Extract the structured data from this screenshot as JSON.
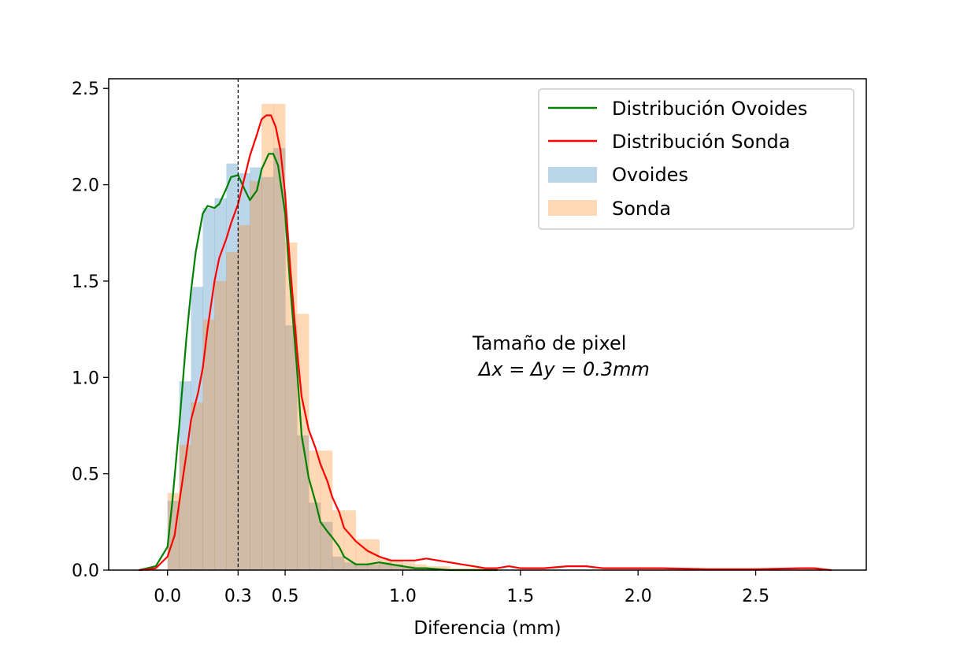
{
  "chart_data": {
    "type": "bar",
    "xlabel": "Diferencia (mm)",
    "ylabel": "",
    "xlim": [
      -0.25,
      2.97
    ],
    "ylim": [
      0,
      2.55
    ],
    "xticks": [
      0.0,
      0.3,
      0.5,
      1.0,
      1.5,
      2.0,
      2.5
    ],
    "xtick_labels": [
      "0.0",
      "0.3",
      "0.5",
      "1.0",
      "1.5",
      "2.0",
      "2.5"
    ],
    "yticks": [
      0.0,
      0.5,
      1.0,
      1.5,
      2.0,
      2.5
    ],
    "ytick_labels": [
      "0.0",
      "0.5",
      "1.0",
      "1.5",
      "2.0",
      "2.5"
    ],
    "grid": false,
    "legend_position": "top-right",
    "vline": {
      "x": 0.3,
      "style": "dashed",
      "color": "#000000"
    },
    "annotation": {
      "line1": "Tamaño de pixel",
      "line2": "Δx = Δy = 0.3mm"
    },
    "histograms": [
      {
        "name": "Ovoides",
        "color": "#1f77b4",
        "alpha": 0.3,
        "bin_width": 0.05,
        "bins": [
          [
            0.0,
            0.36
          ],
          [
            0.05,
            0.98
          ],
          [
            0.1,
            1.47
          ],
          [
            0.15,
            1.88
          ],
          [
            0.2,
            1.93
          ],
          [
            0.25,
            2.11
          ],
          [
            0.3,
            2.06
          ],
          [
            0.35,
            2.09
          ],
          [
            0.4,
            2.04
          ],
          [
            0.45,
            2.19
          ],
          [
            0.5,
            1.27
          ],
          [
            0.55,
            0.7
          ],
          [
            0.6,
            0.35
          ],
          [
            0.65,
            0.25
          ],
          [
            0.7,
            0.07
          ],
          [
            0.75,
            0.04
          ],
          [
            0.8,
            0.03
          ],
          [
            0.85,
            0.03
          ],
          [
            0.9,
            0.04
          ],
          [
            0.95,
            0.03
          ],
          [
            1.0,
            0.02
          ],
          [
            1.05,
            0.01
          ],
          [
            1.1,
            0.01
          ]
        ]
      },
      {
        "name": "Sonda",
        "color": "#ff7f0e",
        "alpha": 0.3,
        "bin_width": 0.05,
        "bins": [
          [
            0.0,
            0.4
          ],
          [
            0.05,
            0.65
          ],
          [
            0.1,
            0.87
          ],
          [
            0.15,
            1.3
          ],
          [
            0.2,
            1.5
          ],
          [
            0.25,
            1.65
          ],
          [
            0.3,
            1.79
          ],
          [
            0.35,
            2.02
          ],
          [
            0.4,
            2.42
          ],
          [
            0.45,
            2.42
          ],
          [
            0.5,
            1.7
          ],
          [
            0.55,
            1.33
          ],
          [
            0.6,
            0.62
          ],
          [
            0.65,
            0.62
          ],
          [
            0.7,
            0.31
          ],
          [
            0.75,
            0.31
          ],
          [
            0.8,
            0.16
          ],
          [
            0.85,
            0.16
          ],
          [
            0.9,
            0.06
          ],
          [
            0.95,
            0.05
          ],
          [
            1.0,
            0.04
          ],
          [
            1.05,
            0.03
          ],
          [
            1.1,
            0.02
          ],
          [
            1.15,
            0.02
          ],
          [
            1.2,
            0.01
          ],
          [
            1.25,
            0.01
          ],
          [
            1.3,
            0.01
          ]
        ]
      }
    ],
    "series": [
      {
        "name": "Distribución Ovoides",
        "type": "line",
        "color": "#008000",
        "x": [
          -0.12,
          -0.05,
          0.0,
          0.02,
          0.05,
          0.08,
          0.1,
          0.12,
          0.15,
          0.17,
          0.2,
          0.22,
          0.25,
          0.27,
          0.3,
          0.33,
          0.35,
          0.38,
          0.4,
          0.43,
          0.45,
          0.47,
          0.5,
          0.52,
          0.55,
          0.57,
          0.6,
          0.63,
          0.65,
          0.68,
          0.7,
          0.73,
          0.75,
          0.8,
          0.85,
          0.9,
          0.95,
          1.0,
          1.05,
          1.1,
          1.2,
          1.3,
          1.4
        ],
        "y": [
          0.0,
          0.02,
          0.12,
          0.35,
          0.75,
          1.2,
          1.45,
          1.65,
          1.85,
          1.89,
          1.88,
          1.9,
          1.98,
          2.04,
          2.05,
          1.97,
          1.92,
          1.97,
          2.08,
          2.16,
          2.16,
          2.1,
          1.85,
          1.5,
          1.05,
          0.7,
          0.48,
          0.35,
          0.25,
          0.2,
          0.17,
          0.12,
          0.07,
          0.03,
          0.03,
          0.04,
          0.03,
          0.02,
          0.01,
          0.01,
          0.0,
          0.0,
          0.0
        ]
      },
      {
        "name": "Distribución Sonda",
        "type": "line",
        "color": "#ff0000",
        "x": [
          -0.12,
          -0.05,
          0.0,
          0.03,
          0.05,
          0.08,
          0.1,
          0.13,
          0.15,
          0.17,
          0.2,
          0.22,
          0.25,
          0.27,
          0.3,
          0.33,
          0.35,
          0.38,
          0.4,
          0.42,
          0.44,
          0.46,
          0.48,
          0.5,
          0.52,
          0.55,
          0.57,
          0.6,
          0.63,
          0.65,
          0.68,
          0.7,
          0.73,
          0.75,
          0.8,
          0.85,
          0.9,
          0.95,
          1.0,
          1.05,
          1.1,
          1.15,
          1.2,
          1.25,
          1.3,
          1.35,
          1.4,
          1.45,
          1.5,
          1.55,
          1.6,
          1.7,
          1.78,
          1.85,
          1.95,
          2.1,
          2.3,
          2.5,
          2.7,
          2.75,
          2.82
        ],
        "y": [
          0.0,
          0.01,
          0.07,
          0.18,
          0.35,
          0.6,
          0.78,
          0.92,
          1.05,
          1.25,
          1.5,
          1.62,
          1.72,
          1.8,
          1.9,
          2.05,
          2.15,
          2.26,
          2.34,
          2.36,
          2.36,
          2.3,
          2.18,
          1.95,
          1.6,
          1.15,
          0.9,
          0.73,
          0.63,
          0.55,
          0.46,
          0.38,
          0.3,
          0.22,
          0.15,
          0.1,
          0.07,
          0.05,
          0.05,
          0.05,
          0.06,
          0.05,
          0.04,
          0.03,
          0.02,
          0.01,
          0.01,
          0.02,
          0.01,
          0.01,
          0.01,
          0.02,
          0.02,
          0.01,
          0.01,
          0.01,
          0.005,
          0.005,
          0.01,
          0.01,
          0.0
        ]
      }
    ]
  }
}
